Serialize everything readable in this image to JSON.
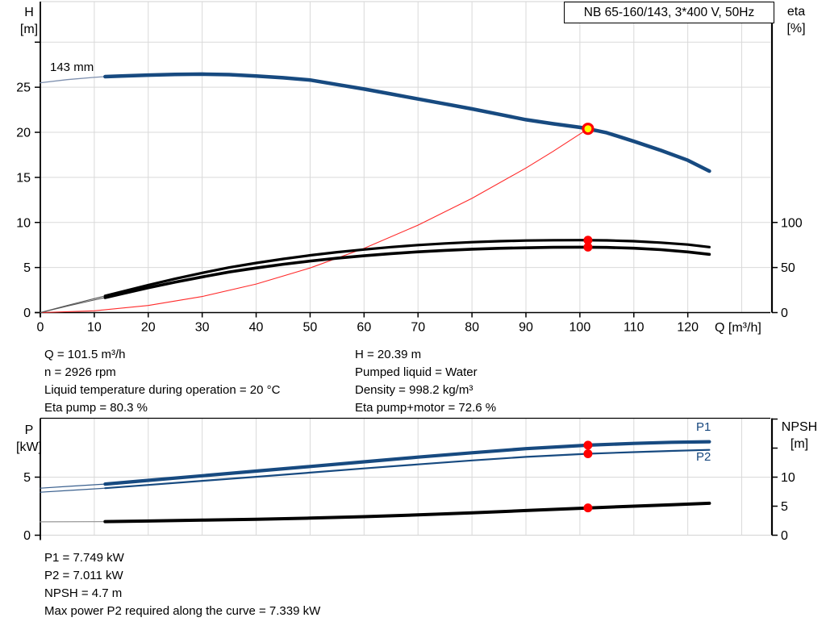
{
  "header": {
    "title": "NB 65-160/143, 3*400 V, 50Hz"
  },
  "axis_titles": {
    "h": [
      "H",
      "[m]"
    ],
    "eta": [
      "eta",
      "[%]"
    ],
    "p": [
      "P",
      "[kW]"
    ],
    "npsh": [
      "NPSH",
      "[m]"
    ],
    "q": "Q [m³/h]"
  },
  "curve_labels": {
    "impeller": "143 mm",
    "p1": "P1",
    "p2": "P2"
  },
  "info_left": [
    "Q = 101.5 m³/h",
    "n = 2926 rpm",
    "Liquid temperature during operation = 20 °C",
    "Eta pump = 80.3 %"
  ],
  "info_right": [
    "H = 20.39 m",
    "Pumped liquid = Water",
    "Density = 998.2 kg/m³",
    "Eta pump+motor = 72.6 %"
  ],
  "info_bottom": [
    "P1 = 7.749 kW",
    "P2 = 7.011 kW",
    "NPSH = 4.7 m",
    "Max power P2 required along the curve = 7.339 kW"
  ],
  "colors": {
    "curve_blue": "#174A80",
    "curve_black": "#000000",
    "system_red": "#FF2A2A",
    "marker_red": "#FF0000",
    "marker_yellow": "#FFFF00",
    "grid": "#D9D9D9",
    "axis": "#000000",
    "label_blue": "#17477E"
  },
  "chart_data": [
    {
      "id": "qh",
      "type": "line",
      "title": "NB 65-160/143, 3*400 V, 50Hz",
      "xlabel": "Q [m³/h]",
      "ylabel_left": "H [m]",
      "ylabel_right": "eta [%]",
      "xlim": [
        0,
        135.3
      ],
      "ylim_left": [
        0,
        34.5
      ],
      "right_to_left_factor": 0.1,
      "xticks": [
        0,
        10,
        20,
        30,
        40,
        50,
        60,
        70,
        80,
        90,
        100,
        110,
        120
      ],
      "xgrid_max": 130,
      "ygrid_left": [
        5,
        10,
        15,
        20,
        25,
        30
      ],
      "yticks_left": [
        0,
        5,
        10,
        15,
        20,
        25
      ],
      "yticks_right": [
        0,
        50,
        100
      ],
      "yticks_right_minor": [],
      "grid": true,
      "legend_position": "none",
      "series": [
        {
          "name": "system-curve",
          "axis": "left",
          "color": "#FF2A2A",
          "width": 1.1,
          "points": [
            [
              0,
              0
            ],
            [
              10,
              0.2
            ],
            [
              20,
              0.79
            ],
            [
              30,
              1.78
            ],
            [
              40,
              3.17
            ],
            [
              50,
              4.95
            ],
            [
              60,
              7.12
            ],
            [
              70,
              9.7
            ],
            [
              80,
              12.67
            ],
            [
              90,
              16.04
            ],
            [
              95,
              17.87
            ],
            [
              101.5,
              20.39
            ]
          ]
        },
        {
          "name": "eta-pump-curve",
          "axis": "right",
          "color": "#000000",
          "width": 3.2,
          "thin_until": 12,
          "thin_width": 1.1,
          "thin_color": "#555555",
          "points": [
            [
              0,
              0
            ],
            [
              5,
              8
            ],
            [
              10,
              15.5
            ],
            [
              12,
              18.5
            ],
            [
              15,
              23
            ],
            [
              20,
              30.5
            ],
            [
              25,
              37.5
            ],
            [
              30,
              44
            ],
            [
              35,
              50
            ],
            [
              40,
              55
            ],
            [
              45,
              59.5
            ],
            [
              50,
              63.5
            ],
            [
              55,
              67
            ],
            [
              60,
              70
            ],
            [
              65,
              72.7
            ],
            [
              70,
              74.9
            ],
            [
              75,
              76.7
            ],
            [
              80,
              78.1
            ],
            [
              85,
              79.2
            ],
            [
              90,
              79.9
            ],
            [
              95,
              80.3
            ],
            [
              100,
              80.4
            ],
            [
              105,
              80.1
            ],
            [
              110,
              79.2
            ],
            [
              115,
              77.6
            ],
            [
              120,
              75.4
            ],
            [
              124,
              72.7
            ]
          ]
        },
        {
          "name": "eta-pump-motor-curve",
          "axis": "right",
          "color": "#000000",
          "width": 3.6,
          "thin_until": 12,
          "thin_width": 1.1,
          "thin_color": "#555555",
          "points": [
            [
              0,
              0
            ],
            [
              5,
              7.2
            ],
            [
              10,
              14
            ],
            [
              12,
              16.6
            ],
            [
              15,
              20.7
            ],
            [
              20,
              27.5
            ],
            [
              25,
              33.8
            ],
            [
              30,
              39.6
            ],
            [
              35,
              45
            ],
            [
              40,
              49.5
            ],
            [
              45,
              53.6
            ],
            [
              50,
              57.2
            ],
            [
              55,
              60.3
            ],
            [
              60,
              63
            ],
            [
              65,
              65.4
            ],
            [
              70,
              67.4
            ],
            [
              75,
              69
            ],
            [
              80,
              70.3
            ],
            [
              85,
              71.3
            ],
            [
              90,
              71.9
            ],
            [
              95,
              72.4
            ],
            [
              100,
              72.6
            ],
            [
              105,
              72.3
            ],
            [
              110,
              71.4
            ],
            [
              115,
              69.8
            ],
            [
              120,
              67.3
            ],
            [
              124,
              64.6
            ]
          ]
        },
        {
          "name": "head-curve",
          "axis": "left",
          "color": "#174A80",
          "width": 4.5,
          "thin_until": 12,
          "thin_width": 1.3,
          "thin_color": "#7D8FAE",
          "points": [
            [
              0,
              25.5
            ],
            [
              5,
              25.85
            ],
            [
              10,
              26.1
            ],
            [
              12,
              26.18
            ],
            [
              15,
              26.25
            ],
            [
              20,
              26.35
            ],
            [
              25,
              26.42
            ],
            [
              30,
              26.45
            ],
            [
              35,
              26.4
            ],
            [
              40,
              26.25
            ],
            [
              45,
              26.05
            ],
            [
              50,
              25.8
            ],
            [
              55,
              25.3
            ],
            [
              60,
              24.8
            ],
            [
              65,
              24.25
            ],
            [
              70,
              23.7
            ],
            [
              75,
              23.15
            ],
            [
              80,
              22.6
            ],
            [
              85,
              22.0
            ],
            [
              90,
              21.4
            ],
            [
              95,
              20.95
            ],
            [
              100,
              20.55
            ],
            [
              101.5,
              20.39
            ],
            [
              105,
              19.95
            ],
            [
              110,
              19.0
            ],
            [
              115,
              18.0
            ],
            [
              120,
              16.9
            ],
            [
              124,
              15.7
            ]
          ]
        }
      ],
      "markers": [
        {
          "name": "eta-pump-point",
          "q": 101.5,
          "v": 80.3,
          "axis": "right",
          "style": "dot",
          "color": "#FF0000"
        },
        {
          "name": "eta-pump-motor-point",
          "q": 101.5,
          "v": 72.6,
          "axis": "right",
          "style": "dot",
          "color": "#FF0000"
        },
        {
          "name": "duty-point",
          "q": 101.5,
          "v": 20.39,
          "axis": "left",
          "style": "target",
          "fill": "#FFFF00",
          "ring": "#FF0000"
        }
      ]
    },
    {
      "id": "pq",
      "type": "line",
      "title": "",
      "xlabel": "",
      "ylabel_left": "P [kW]",
      "ylabel_right": "NPSH [m]",
      "xlim": [
        0,
        135.3
      ],
      "ylim_left": [
        0,
        10.07
      ],
      "right_to_left_factor": 0.5,
      "xticks": [],
      "xgrid_max": 130,
      "ygrid_left": [
        5
      ],
      "yticks_left": [
        0,
        5
      ],
      "yticks_right": [
        0,
        5,
        10
      ],
      "yticks_right_minor": [
        15,
        20
      ],
      "grid": true,
      "legend_position": "right-inline",
      "series": [
        {
          "name": "npsh-curve",
          "axis": "right",
          "color": "#000000",
          "width": 4,
          "thin_until": 12,
          "thin_width": 1.3,
          "thin_color": "#999999",
          "points": [
            [
              0,
              2.3
            ],
            [
              12,
              2.35
            ],
            [
              20,
              2.45
            ],
            [
              30,
              2.6
            ],
            [
              40,
              2.75
            ],
            [
              50,
              2.95
            ],
            [
              60,
              3.2
            ],
            [
              70,
              3.5
            ],
            [
              80,
              3.85
            ],
            [
              90,
              4.25
            ],
            [
              101.5,
              4.7
            ],
            [
              110,
              5.0
            ],
            [
              117,
              5.25
            ],
            [
              124,
              5.5
            ]
          ]
        },
        {
          "name": "p2-curve",
          "axis": "left",
          "color": "#174A80",
          "width": 2.2,
          "thin_until": 12,
          "thin_width": 1.2,
          "thin_color": "#3A608E",
          "points": [
            [
              0,
              3.7
            ],
            [
              5,
              3.85
            ],
            [
              12,
              4.05
            ],
            [
              20,
              4.33
            ],
            [
              30,
              4.68
            ],
            [
              40,
              5.03
            ],
            [
              50,
              5.39
            ],
            [
              60,
              5.75
            ],
            [
              70,
              6.1
            ],
            [
              80,
              6.44
            ],
            [
              90,
              6.74
            ],
            [
              101.5,
              7.011
            ],
            [
              110,
              7.15
            ],
            [
              117,
              7.26
            ],
            [
              124,
              7.35
            ]
          ]
        },
        {
          "name": "p1-curve",
          "axis": "left",
          "color": "#174A80",
          "width": 4.2,
          "thin_until": 12,
          "thin_width": 1.2,
          "thin_color": "#3A608E",
          "points": [
            [
              0,
              4.05
            ],
            [
              5,
              4.2
            ],
            [
              12,
              4.4
            ],
            [
              20,
              4.72
            ],
            [
              30,
              5.12
            ],
            [
              40,
              5.52
            ],
            [
              50,
              5.92
            ],
            [
              60,
              6.32
            ],
            [
              70,
              6.72
            ],
            [
              80,
              7.1
            ],
            [
              90,
              7.45
            ],
            [
              101.5,
              7.749
            ],
            [
              110,
              7.9
            ],
            [
              117,
              8.0
            ],
            [
              124,
              8.05
            ]
          ]
        }
      ],
      "markers": [
        {
          "name": "p1-point",
          "q": 101.5,
          "v": 7.749,
          "axis": "left",
          "style": "dot",
          "color": "#FF0000"
        },
        {
          "name": "p2-point",
          "q": 101.5,
          "v": 7.011,
          "axis": "left",
          "style": "dot",
          "color": "#FF0000"
        },
        {
          "name": "npsh-point",
          "q": 101.5,
          "v": 4.7,
          "axis": "right",
          "style": "dot",
          "color": "#FF0000"
        }
      ]
    }
  ]
}
